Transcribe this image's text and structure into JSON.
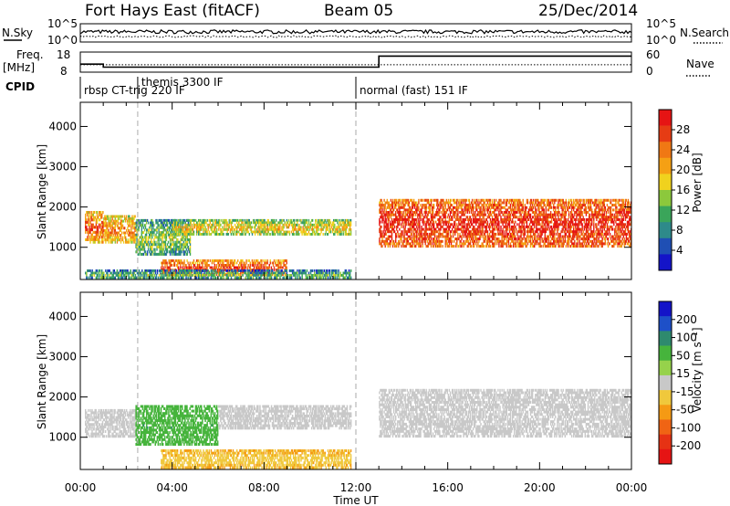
{
  "header": {
    "title": "Fort Hays East (fitACF)",
    "beam": "Beam 05",
    "date": "25/Dec/2014"
  },
  "top_panels": {
    "nsky_label": "N.Sky",
    "nsearch_label": "N.Search",
    "nsky_ticks": [
      "10^5",
      "10^0"
    ],
    "nsearch_ticks": [
      "10^5",
      "10^0"
    ],
    "freq_label": "Freq.",
    "freq_unit": "[MHz]",
    "freq_ticks": [
      "18",
      "8"
    ],
    "nave_label": "Nave",
    "nave_ticks": [
      "60",
      "0"
    ],
    "cpid_label": "CPID",
    "cpid_segments": [
      {
        "label": "rbsp CT-trig 220 IF",
        "start_hour": 0.0,
        "end_hour": 2.5
      },
      {
        "label": "themis 3300 IF",
        "start_hour": 2.5,
        "end_hour": 12.0
      },
      {
        "label": "normal (fast) 151 IF",
        "start_hour": 12.0,
        "end_hour": 24.0
      }
    ]
  },
  "axes": {
    "ylabel": "Slant Range [km]",
    "xlabel": "Time UT",
    "y_ticks": [
      "1000",
      "2000",
      "3000",
      "4000"
    ],
    "x_ticks": [
      "00:00",
      "04:00",
      "08:00",
      "12:00",
      "16:00",
      "20:00",
      "00:00"
    ]
  },
  "power_colorbar": {
    "label": "Power [dB]",
    "ticks": [
      "4",
      "8",
      "12",
      "16",
      "20",
      "24",
      "28"
    ],
    "colors": [
      "#1414c8",
      "#1f4fb4",
      "#2e8a8a",
      "#3aa55a",
      "#8cc83c",
      "#f0d21e",
      "#f5a014",
      "#f07814",
      "#e63c14",
      "#e61414"
    ]
  },
  "velocity_colorbar": {
    "label": "Velocity [m s⁻¹]",
    "ticks": [
      "200",
      "100",
      "50",
      "15",
      "-15",
      "-50",
      "-100",
      "-200"
    ],
    "colors": [
      "#1414c8",
      "#1e50c8",
      "#2e8a6e",
      "#46b43c",
      "#96d24b",
      "#c8c8c8",
      "#f0c83c",
      "#f59a14",
      "#f06414",
      "#e63214",
      "#e61414"
    ]
  },
  "chart_data": {
    "type": "heatmap",
    "x_range": [
      0,
      24
    ],
    "y_range": [
      200,
      4600
    ],
    "nsky_level": 1.2,
    "freq_series": [
      {
        "x": 0.0,
        "y": 12.0
      },
      {
        "x": 1.0,
        "y": 12.0
      },
      {
        "x": 1.0,
        "y": 10.5
      },
      {
        "x": 13.0,
        "y": 10.5
      },
      {
        "x": 13.0,
        "y": 16.0
      },
      {
        "x": 24.0,
        "y": 16.0
      }
    ],
    "nave_level": 22,
    "power_bands": [
      {
        "x0": 0.2,
        "x1": 1.0,
        "y0": 1100,
        "y1": 1900,
        "level": 18
      },
      {
        "x0": 1.0,
        "x1": 2.4,
        "y0": 1100,
        "y1": 1800,
        "level": 16
      },
      {
        "x0": 2.4,
        "x1": 4.8,
        "y0": 800,
        "y1": 1700,
        "level": 8
      },
      {
        "x0": 4.0,
        "x1": 11.8,
        "y0": 1300,
        "y1": 1700,
        "level": 12
      },
      {
        "x0": 3.5,
        "x1": 9.0,
        "y0": 300,
        "y1": 700,
        "level": 20
      },
      {
        "x0": 0.2,
        "x1": 11.8,
        "y0": 220,
        "y1": 450,
        "level": 6
      },
      {
        "x0": 13.0,
        "x1": 24.0,
        "y0": 1000,
        "y1": 2200,
        "level": 22
      }
    ],
    "velocity_bands": [
      {
        "x0": 0.2,
        "x1": 2.4,
        "y0": 1000,
        "y1": 1700,
        "velocity": 0
      },
      {
        "x0": 2.4,
        "x1": 6.0,
        "y0": 800,
        "y1": 1800,
        "velocity": 40
      },
      {
        "x0": 6.0,
        "x1": 11.8,
        "y0": 1200,
        "y1": 1800,
        "velocity": 0
      },
      {
        "x0": 3.5,
        "x1": 11.8,
        "y0": 220,
        "y1": 700,
        "velocity": -30
      },
      {
        "x0": 13.0,
        "x1": 24.0,
        "y0": 1000,
        "y1": 2200,
        "velocity": 0
      }
    ]
  }
}
